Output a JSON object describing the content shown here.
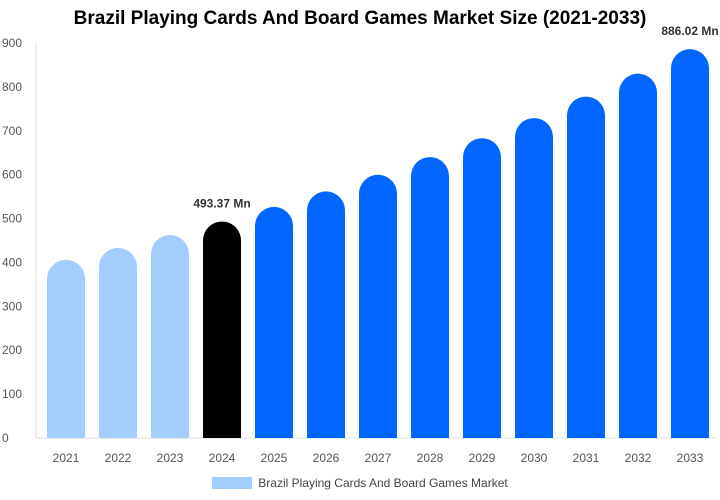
{
  "chart_data": {
    "type": "bar",
    "title": "Brazil Playing Cards And Board Games Market Size (2021-2033)",
    "categories": [
      "2021",
      "2022",
      "2023",
      "2024",
      "2025",
      "2026",
      "2027",
      "2028",
      "2029",
      "2030",
      "2031",
      "2032",
      "2033"
    ],
    "series": [
      {
        "name": "Brazil Playing Cards And Board Games Market",
        "values": [
          405.9,
          433.2,
          462.3,
          493.37,
          526.5,
          561.9,
          599.7,
          640.0,
          683.0,
          728.9,
          777.9,
          830.2,
          886.02
        ]
      }
    ],
    "data_labels": {
      "2024": "493.37 Mn",
      "2033": "886.02 Mn"
    },
    "ylim": [
      0,
      900
    ],
    "yticks": [
      0,
      100,
      200,
      300,
      400,
      500,
      600,
      700,
      800,
      900
    ],
    "xlabel": "",
    "ylabel": "",
    "legend": "bottom-center",
    "colors": {
      "historical": "#a3cdfd",
      "base_year": "#000000",
      "forecast": "#0066ff"
    }
  }
}
